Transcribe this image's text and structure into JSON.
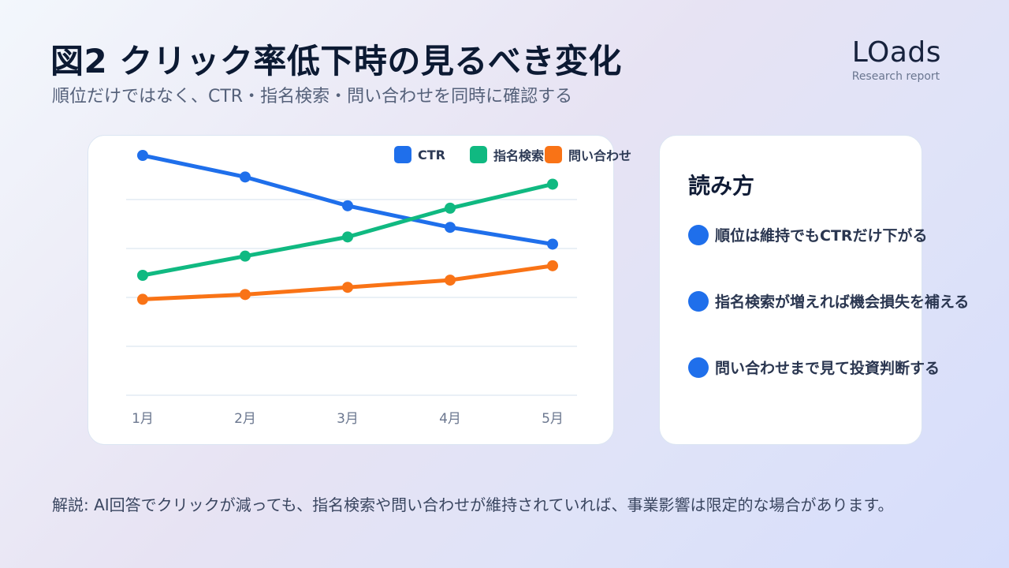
{
  "header": {
    "title": "図2 クリック率低下時の見るべき変化",
    "subtitle": "順位だけではなく、CTR・指名検索・問い合わせを同時に確認する"
  },
  "brand": {
    "name": "LOads",
    "tagline": "Research report"
  },
  "chart_data": {
    "type": "line",
    "categories": [
      "1月",
      "2月",
      "3月",
      "4月",
      "5月"
    ],
    "ylim": [
      0,
      100
    ],
    "grid": true,
    "legend_position": "top-right",
    "series": [
      {
        "name": "CTR",
        "color": "#1f6feb",
        "values": [
          100,
          91,
          79,
          70,
          63
        ]
      },
      {
        "name": "指名検索",
        "color": "#10b981",
        "values": [
          50,
          58,
          66,
          78,
          88
        ]
      },
      {
        "name": "問い合わせ",
        "color": "#f97316",
        "values": [
          40,
          42,
          45,
          48,
          54
        ]
      }
    ]
  },
  "panel": {
    "title": "読み方",
    "items": [
      "順位は維持でもCTRだけ下がる",
      "指名検索が増えれば機会損失を補える",
      "問い合わせまで見て投資判断する"
    ]
  },
  "footer": {
    "note": "解説: AI回答でクリックが減っても、指名検索や問い合わせが維持されていれば、事業影響は限定的な場合があります。"
  }
}
